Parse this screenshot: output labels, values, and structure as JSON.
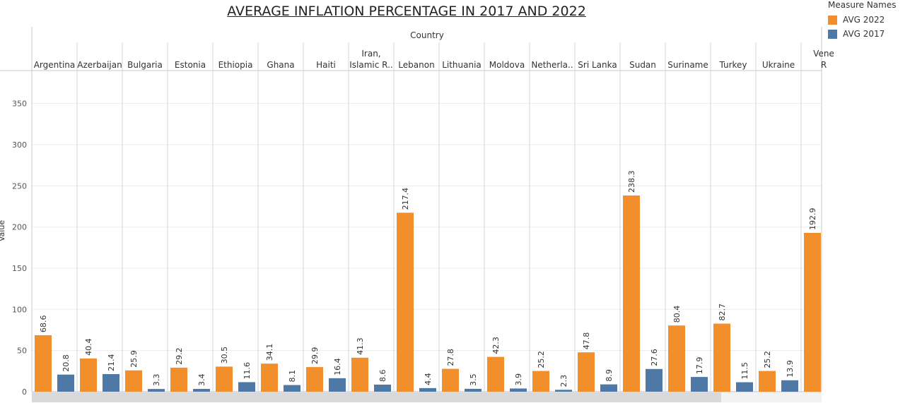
{
  "title": "AVERAGE INFLATION PERCENTAGE IN 2017 AND 2022",
  "legend": {
    "title": "Measure Names",
    "items": [
      {
        "label": "AVG 2022",
        "color": "#f28e2b"
      },
      {
        "label": "AVG 2017",
        "color": "#4e79a7"
      }
    ]
  },
  "chart_data": {
    "type": "bar",
    "title": "AVERAGE INFLATION PERCENTAGE IN 2017 AND 2022",
    "header_label": "Country",
    "ylabel": "Value",
    "ylim": [
      0,
      390
    ],
    "yticks": [
      0,
      50,
      100,
      150,
      200,
      250,
      300,
      350
    ],
    "grid": true,
    "legend_position": "top-right",
    "categories": [
      [
        "Argentina"
      ],
      [
        "Azerbaijan"
      ],
      [
        "Bulgaria"
      ],
      [
        "Estonia"
      ],
      [
        "Ethiopia"
      ],
      [
        "Ghana"
      ],
      [
        "Haiti"
      ],
      [
        "Iran,",
        "Islamic R.."
      ],
      [
        "Lebanon"
      ],
      [
        "Lithuania"
      ],
      [
        "Moldova"
      ],
      [
        "Netherla.."
      ],
      [
        "Sri Lanka"
      ],
      [
        "Sudan"
      ],
      [
        "Suriname"
      ],
      [
        "Turkey"
      ],
      [
        "Ukraine"
      ],
      [
        "Vene",
        "R"
      ]
    ],
    "series": [
      {
        "name": "AVG 2022",
        "color": "#f28e2b",
        "values": [
          68.6,
          40.4,
          25.9,
          29.2,
          30.5,
          34.1,
          29.9,
          41.3,
          217.4,
          27.8,
          42.3,
          25.2,
          47.8,
          238.3,
          80.4,
          82.7,
          25.2,
          192.9
        ]
      },
      {
        "name": "AVG 2017",
        "color": "#4e79a7",
        "values": [
          20.8,
          21.4,
          3.3,
          3.4,
          11.6,
          8.1,
          16.4,
          8.6,
          4.4,
          3.5,
          3.9,
          2.3,
          8.9,
          27.6,
          17.9,
          11.5,
          13.9,
          null
        ]
      }
    ]
  }
}
